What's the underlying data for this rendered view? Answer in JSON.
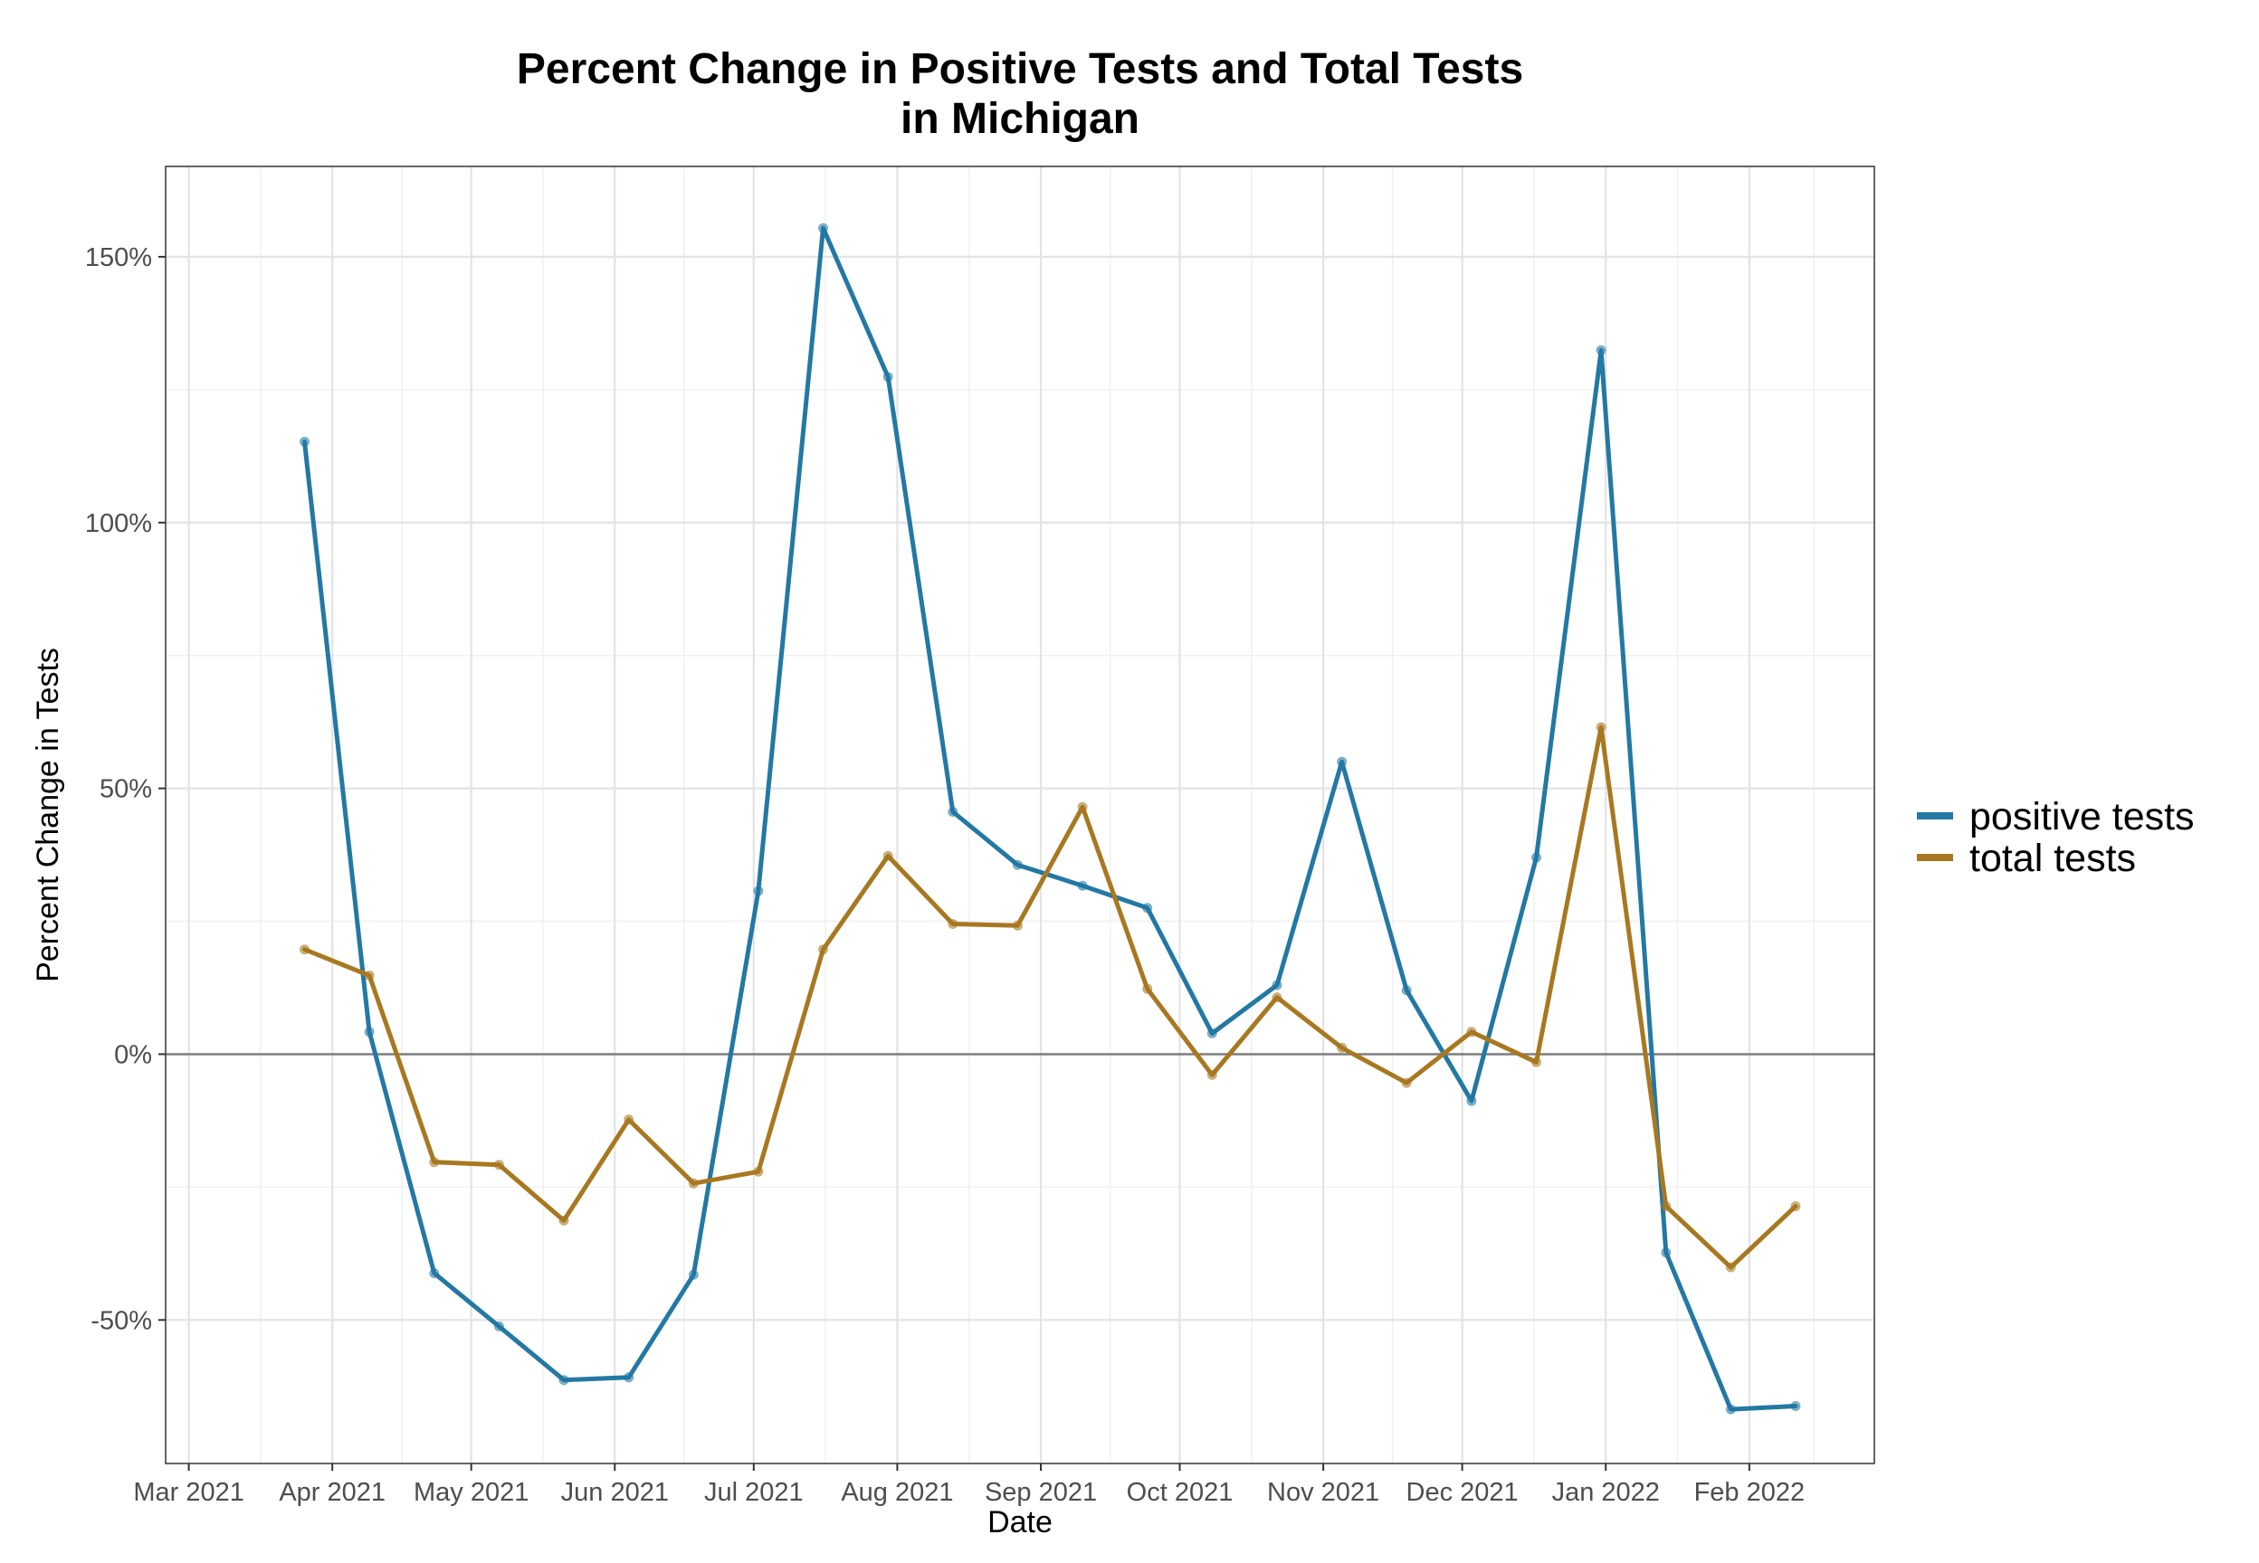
{
  "chart_data": {
    "type": "line",
    "title": [
      "Percent Change in Positive Tests and Total Tests",
      "in Michigan"
    ],
    "xlabel": "Date",
    "ylabel": "Percent Change in Tests",
    "x_tick_labels": [
      "Mar 2021",
      "Apr 2021",
      "May 2021",
      "Jun 2021",
      "Jul 2021",
      "Aug 2021",
      "Sep 2021",
      "Oct 2021",
      "Nov 2021",
      "Dec 2021",
      "Jan 2022",
      "Feb 2022"
    ],
    "x_tick_dates": [
      "2021-03-01",
      "2021-04-01",
      "2021-05-01",
      "2021-06-01",
      "2021-07-01",
      "2021-08-01",
      "2021-09-01",
      "2021-10-01",
      "2021-11-01",
      "2021-12-01",
      "2022-01-01",
      "2022-02-01"
    ],
    "y_tick_labels": [
      "-50%",
      "0%",
      "50%",
      "100%",
      "150%"
    ],
    "y_tick_values": [
      -50,
      0,
      50,
      100,
      150
    ],
    "xlim": [
      "2021-02-24",
      "2022-02-28"
    ],
    "ylim": [
      -77,
      167
    ],
    "grid": true,
    "reference_line": 0,
    "legend_position": "right",
    "x": [
      "2021-03-26",
      "2021-04-09",
      "2021-04-23",
      "2021-05-07",
      "2021-05-21",
      "2021-06-04",
      "2021-06-18",
      "2021-07-02",
      "2021-07-16",
      "2021-07-30",
      "2021-08-13",
      "2021-08-27",
      "2021-09-10",
      "2021-09-24",
      "2021-10-08",
      "2021-10-22",
      "2021-11-05",
      "2021-11-19",
      "2021-12-03",
      "2021-12-17",
      "2021-12-31",
      "2022-01-14",
      "2022-01-28",
      "2022-02-11"
    ],
    "series": [
      {
        "name": "positive tests",
        "color": "#2378a4",
        "values": [
          115.2,
          4.2,
          -41.2,
          -51.2,
          -61.3,
          -60.8,
          -41.5,
          30.7,
          155.4,
          127.4,
          45.6,
          35.6,
          31.7,
          27.5,
          3.9,
          13.0,
          55.0,
          12.0,
          -8.8,
          37.0,
          132.4,
          -37.3,
          -66.8,
          -66.2
        ]
      },
      {
        "name": "total tests",
        "color": "#a87820",
        "values": [
          19.7,
          14.8,
          -20.3,
          -20.8,
          -31.3,
          -12.3,
          -24.3,
          -22.1,
          19.7,
          37.3,
          24.5,
          24.2,
          46.5,
          12.3,
          -3.9,
          10.7,
          1.2,
          -5.4,
          4.2,
          -1.5,
          61.5,
          -28.6,
          -40.1,
          -28.6
        ]
      }
    ]
  }
}
